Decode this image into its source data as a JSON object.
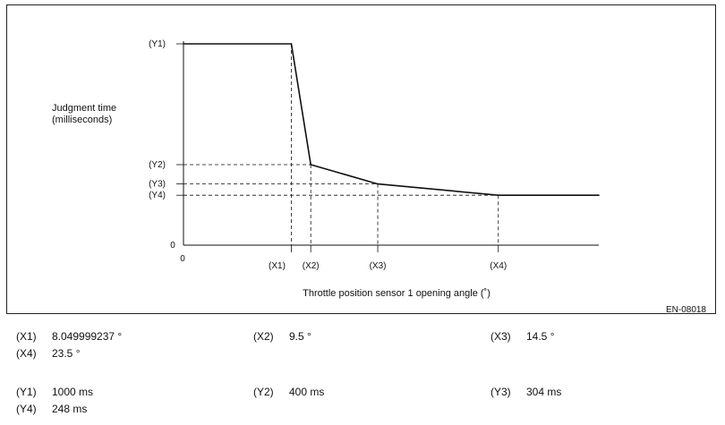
{
  "chart_data": {
    "type": "line",
    "ylabel_lines": [
      "Judgment time",
      "(milliseconds)"
    ],
    "xlabel": "Throttle position sensor 1 opening angle (˚)",
    "figure_id": "EN-08018",
    "origin_x_label": "0",
    "origin_y_label": "0",
    "y_ticks": [
      "(Y1)",
      "(Y2)",
      "(Y3)",
      "(Y4)"
    ],
    "x_ticks": [
      "(X1)",
      "(X2)",
      "(X3)",
      "(X4)"
    ],
    "points": [
      {
        "x": 0,
        "y": 1000
      },
      {
        "x": 8.05,
        "y": 1000
      },
      {
        "x": 9.5,
        "y": 400
      },
      {
        "x": 14.5,
        "y": 304
      },
      {
        "x": 23.5,
        "y": 248
      },
      {
        "x": 31,
        "y": 248
      }
    ],
    "xlim": [
      0,
      31
    ],
    "ylim": [
      0,
      1000
    ]
  },
  "legend": [
    {
      "key": "(X1)",
      "value": "8.049999237 °"
    },
    {
      "key": "(X2)",
      "value": "9.5 °"
    },
    {
      "key": "(X3)",
      "value": "14.5 °"
    },
    {
      "key": "(X4)",
      "value": "23.5 °"
    },
    {
      "key": "(Y1)",
      "value": "1000 ms"
    },
    {
      "key": "(Y2)",
      "value": "400 ms"
    },
    {
      "key": "(Y3)",
      "value": "304 ms"
    },
    {
      "key": "(Y4)",
      "value": "248 ms"
    }
  ]
}
